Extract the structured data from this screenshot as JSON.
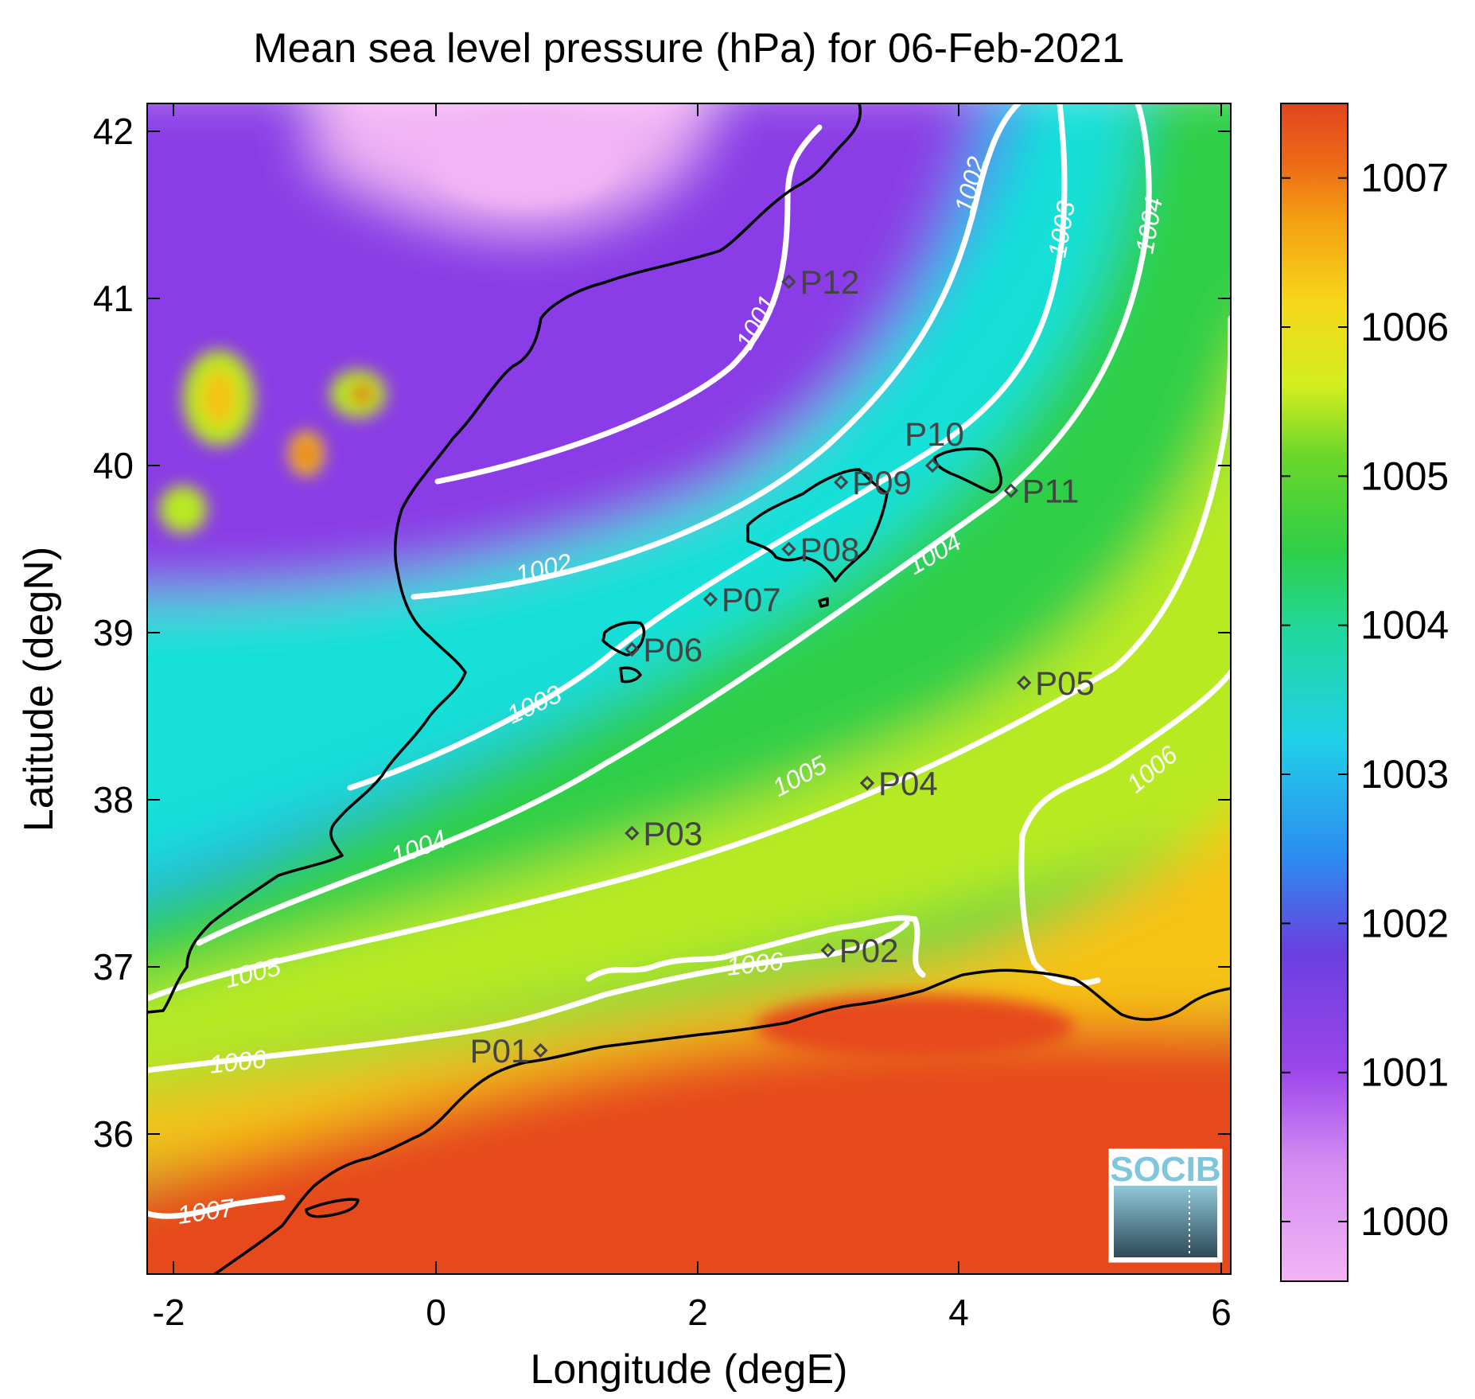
{
  "title": "Mean sea level pressure (hPa) for 06-Feb-2021",
  "xlabel": "Longitude (degE)",
  "ylabel": "Latitude (degN)",
  "x_ticks": [
    "-2",
    "0",
    "2",
    "4",
    "6"
  ],
  "y_ticks": [
    "36",
    "37",
    "38",
    "39",
    "40",
    "41",
    "42"
  ],
  "colorbar": {
    "ticks": [
      "1000",
      "1001",
      "1002",
      "1003",
      "1004",
      "1005",
      "1006",
      "1007"
    ],
    "range": [
      999.6,
      1007.5
    ]
  },
  "contour_labels": [
    "1001",
    "1002",
    "1002",
    "1003",
    "1003",
    "1004",
    "1004",
    "1004",
    "1005",
    "1005",
    "1006",
    "1006",
    "1006",
    "1007"
  ],
  "stations": [
    {
      "id": "P01",
      "lon": 0.8,
      "lat": 36.5
    },
    {
      "id": "P02",
      "lon": 3.0,
      "lat": 37.1
    },
    {
      "id": "P03",
      "lon": 1.5,
      "lat": 37.8
    },
    {
      "id": "P04",
      "lon": 3.3,
      "lat": 38.1
    },
    {
      "id": "P05",
      "lon": 4.5,
      "lat": 38.7
    },
    {
      "id": "P06",
      "lon": 1.5,
      "lat": 38.9
    },
    {
      "id": "P07",
      "lon": 2.1,
      "lat": 39.2
    },
    {
      "id": "P08",
      "lon": 2.7,
      "lat": 39.5
    },
    {
      "id": "P09",
      "lon": 3.1,
      "lat": 39.9
    },
    {
      "id": "P10",
      "lon": 3.8,
      "lat": 40.0
    },
    {
      "id": "P11",
      "lon": 4.4,
      "lat": 39.85
    },
    {
      "id": "P12",
      "lon": 2.7,
      "lat": 41.1
    }
  ],
  "logo_text": "SOCIB",
  "colors": {
    "p1000": "#f2b4f4",
    "p1001": "#8a3ee6",
    "p1002": "#2c9ff0",
    "p1003": "#17e0d8",
    "p1004": "#2ecf47",
    "p1005": "#b8ea22",
    "p1006": "#f6c315",
    "p1007": "#e6481e",
    "contour": "#ffffff",
    "coast": "#000000"
  }
}
